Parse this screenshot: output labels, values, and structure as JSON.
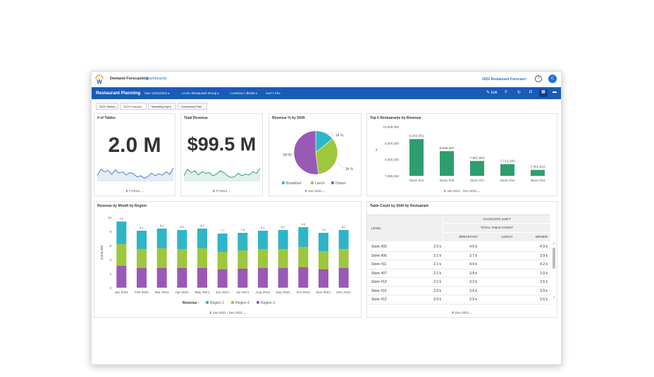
{
  "app": {
    "name": "Demand Forecasting",
    "crumb": "Dashboards",
    "forecast_selector": "2022 Restaurant Forecast",
    "help": "?",
    "avatar": "C"
  },
  "toolbar": {
    "title": "Restaurant Planning",
    "filters": [
      {
        "label": "TIME",
        "value": "12/21/2021"
      },
      {
        "label": "LEVEL",
        "value": "Restaurant Group"
      },
      {
        "label": "CURRENCY",
        "value": "$USD"
      },
      {
        "label": "SHIFT",
        "value": "All"
      }
    ],
    "edit_label": "Edit"
  },
  "tabs": [
    "2021 History",
    "2022 Forecast",
    "Marketing Input",
    "Consensus Plan"
  ],
  "cards": {
    "tables": {
      "title": "# of Tables",
      "value": "2.0 M",
      "footer": "FY2021"
    },
    "revenue": {
      "title": "Total Revenue",
      "value": "$99.5 M",
      "footer": "FY2021"
    },
    "shift": {
      "title": "Revenue % by Shift",
      "footer": "Dec-2021"
    },
    "top5": {
      "title": "Top 5 Restuarants by Revenue",
      "footer": "Jan-2021 - Dec-2021"
    },
    "month": {
      "title": "Revenue by Month by Region",
      "footer": "Jan-2021 - Dec-2021"
    },
    "table_count": {
      "title": "Table Count by Shift by Restuarant",
      "footer": "Dec-2021",
      "level_label": "LEVEL",
      "group_label": "ACCOUNTS SHIFT",
      "subgroup_label": "TOTAL TABLE COUNT",
      "columns": [
        "BREAKFAST",
        "LUNCH",
        "DINNER"
      ],
      "rows": [
        {
          "store": "Store #03",
          "v": [
            "2.5 k",
            "4.6 k",
            "4.9 k"
          ]
        },
        {
          "store": "Store #06",
          "v": [
            "2.1 k",
            "3.7 k",
            "3.9 k"
          ]
        },
        {
          "store": "Store #11",
          "v": [
            "2.1 k",
            "4.0 k",
            "4.2 k"
          ]
        },
        {
          "store": "Store #07",
          "v": [
            "2.1 k",
            "3.8 k",
            "3.9 k"
          ]
        },
        {
          "store": "Store #13",
          "v": [
            "2.1 k",
            "3.2 k",
            "3.5 k"
          ]
        },
        {
          "store": "Store #15",
          "v": [
            "2.0 k",
            "3.6 k",
            "3.9 k"
          ]
        },
        {
          "store": "Store #12",
          "v": [
            "2.0 k",
            "2.5 k",
            "2.6 k"
          ]
        }
      ]
    }
  },
  "colors": {
    "blue": "#1a5bb8",
    "teal": "#2fb5c8",
    "green": "#9dc73d",
    "purple": "#9b59b6",
    "bar_green": "#2e9e6e",
    "spark": "#4a7fc1"
  },
  "chart_data": [
    {
      "type": "line",
      "title": "# of Tables",
      "values": [
        3,
        4,
        3.6,
        3.8,
        3.2,
        3.9,
        3.4,
        3.6,
        3.1,
        3.5,
        3.3,
        2.8,
        3,
        2.6,
        2.9,
        3.4,
        3.0,
        3.3,
        3.1,
        3.6,
        3.2,
        4.2
      ]
    },
    {
      "type": "line",
      "title": "Total Revenue",
      "values": [
        3,
        3.8,
        3.4,
        3.6,
        3.1,
        3.5,
        3.3,
        3.4,
        3.0,
        3.2,
        3.6,
        3.4,
        3.0,
        2.8,
        2.9,
        3.3,
        3.0,
        3.2,
        3.1,
        3.5,
        3.3,
        3.9
      ]
    },
    {
      "type": "pie",
      "title": "Revenue % by Shift",
      "slices": [
        {
          "name": "Breakfast",
          "value": 14,
          "label": "14 %",
          "color": "#2fb5c8"
        },
        {
          "name": "Lunch",
          "value": 34,
          "label": "34 %",
          "color": "#9dc73d"
        },
        {
          "name": "Dinner",
          "value": 52,
          "label": "52 %",
          "color": "#9b59b6"
        }
      ]
    },
    {
      "type": "bar",
      "title": "Top 5 Restuarants by Revenue",
      "categories": [
        "Store #22",
        "Store #25",
        "Store #27",
        "Store #34",
        "Store #23"
      ],
      "values": [
        9242001,
        8506367,
        7907604,
        7713206,
        7361923
      ],
      "labels": [
        "9,242,001",
        "8,506,367",
        "7,907,604",
        "7,713,206",
        "7,361,923"
      ],
      "ylim": [
        7000000,
        10000000
      ],
      "yticks": [
        "10,000,000",
        "9,000,000",
        "8,000,000",
        "7,000,000"
      ],
      "ylabel": "#"
    },
    {
      "type": "bar",
      "title": "Revenue by Month by Region",
      "ylabel": "$,000,000",
      "ylim": [
        0,
        10
      ],
      "yticks": [
        "10",
        "8",
        "6",
        "4",
        "2",
        "0"
      ],
      "categories": [
        "Jan 2021",
        "Feb 2021",
        "Mar 2021",
        "Apr 2021",
        "May 2021",
        "Jun 2021",
        "Jul 2021",
        "Aug 2021",
        "Sep 2021",
        "Oct 2021",
        "Nov 2021",
        "Dec 2021"
      ],
      "totals_labels": [
        "9.4",
        "8.1",
        "8.4",
        "8.2",
        "8.4",
        "7.7",
        "7.8",
        "8.1",
        "8.2",
        "8.6",
        "7.8",
        "8.2"
      ],
      "legend_title": "Revenue :",
      "series": [
        {
          "name": "Region 3",
          "color": "#9b59b6",
          "values": [
            3.1,
            2.8,
            2.8,
            2.8,
            2.8,
            2.6,
            2.7,
            2.8,
            2.8,
            2.9,
            2.6,
            2.8
          ]
        },
        {
          "name": "Region 2",
          "color": "#9dc73d",
          "values": [
            3.1,
            2.7,
            2.8,
            2.7,
            2.8,
            2.5,
            2.6,
            2.7,
            2.7,
            2.9,
            2.6,
            2.7
          ]
        },
        {
          "name": "Region 1",
          "color": "#2fb5c8",
          "values": [
            3.2,
            2.6,
            2.8,
            2.7,
            2.8,
            2.6,
            2.5,
            2.6,
            2.7,
            2.8,
            2.6,
            2.7
          ]
        }
      ]
    }
  ]
}
